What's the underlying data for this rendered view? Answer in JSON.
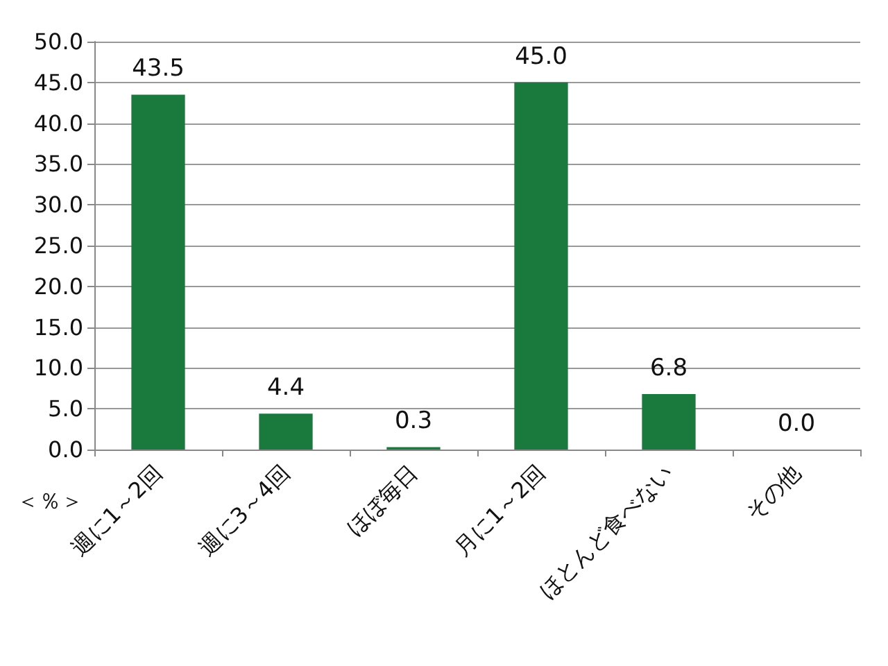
{
  "chart_data": {
    "type": "bar",
    "ylabel": "＜％＞",
    "categories": [
      "週に1～2回",
      "週に3～4回",
      "ほぼ毎日",
      "月に1～2回",
      "ほとんど食べない",
      "その他"
    ],
    "values": [
      43.5,
      4.4,
      0.3,
      45.0,
      6.8,
      0.0
    ],
    "value_labels": [
      "43.5",
      "4.4",
      "0.3",
      "45.0",
      "6.8",
      "0.0"
    ],
    "color": "#1a7a3e",
    "ylim": [
      0,
      50
    ],
    "yticks": [
      {
        "value": 0,
        "label": "0.0"
      },
      {
        "value": 5,
        "label": "5.0"
      },
      {
        "value": 10,
        "label": "10.0"
      },
      {
        "value": 15,
        "label": "15.0"
      },
      {
        "value": 20,
        "label": "20.0"
      },
      {
        "value": 25,
        "label": "25.0"
      },
      {
        "value": 30,
        "label": "30.0"
      },
      {
        "value": 35,
        "label": "35.0"
      },
      {
        "value": 40,
        "label": "40.0"
      },
      {
        "value": 45,
        "label": "45.0"
      },
      {
        "value": 50,
        "label": "50.0"
      }
    ],
    "grid": "y"
  }
}
